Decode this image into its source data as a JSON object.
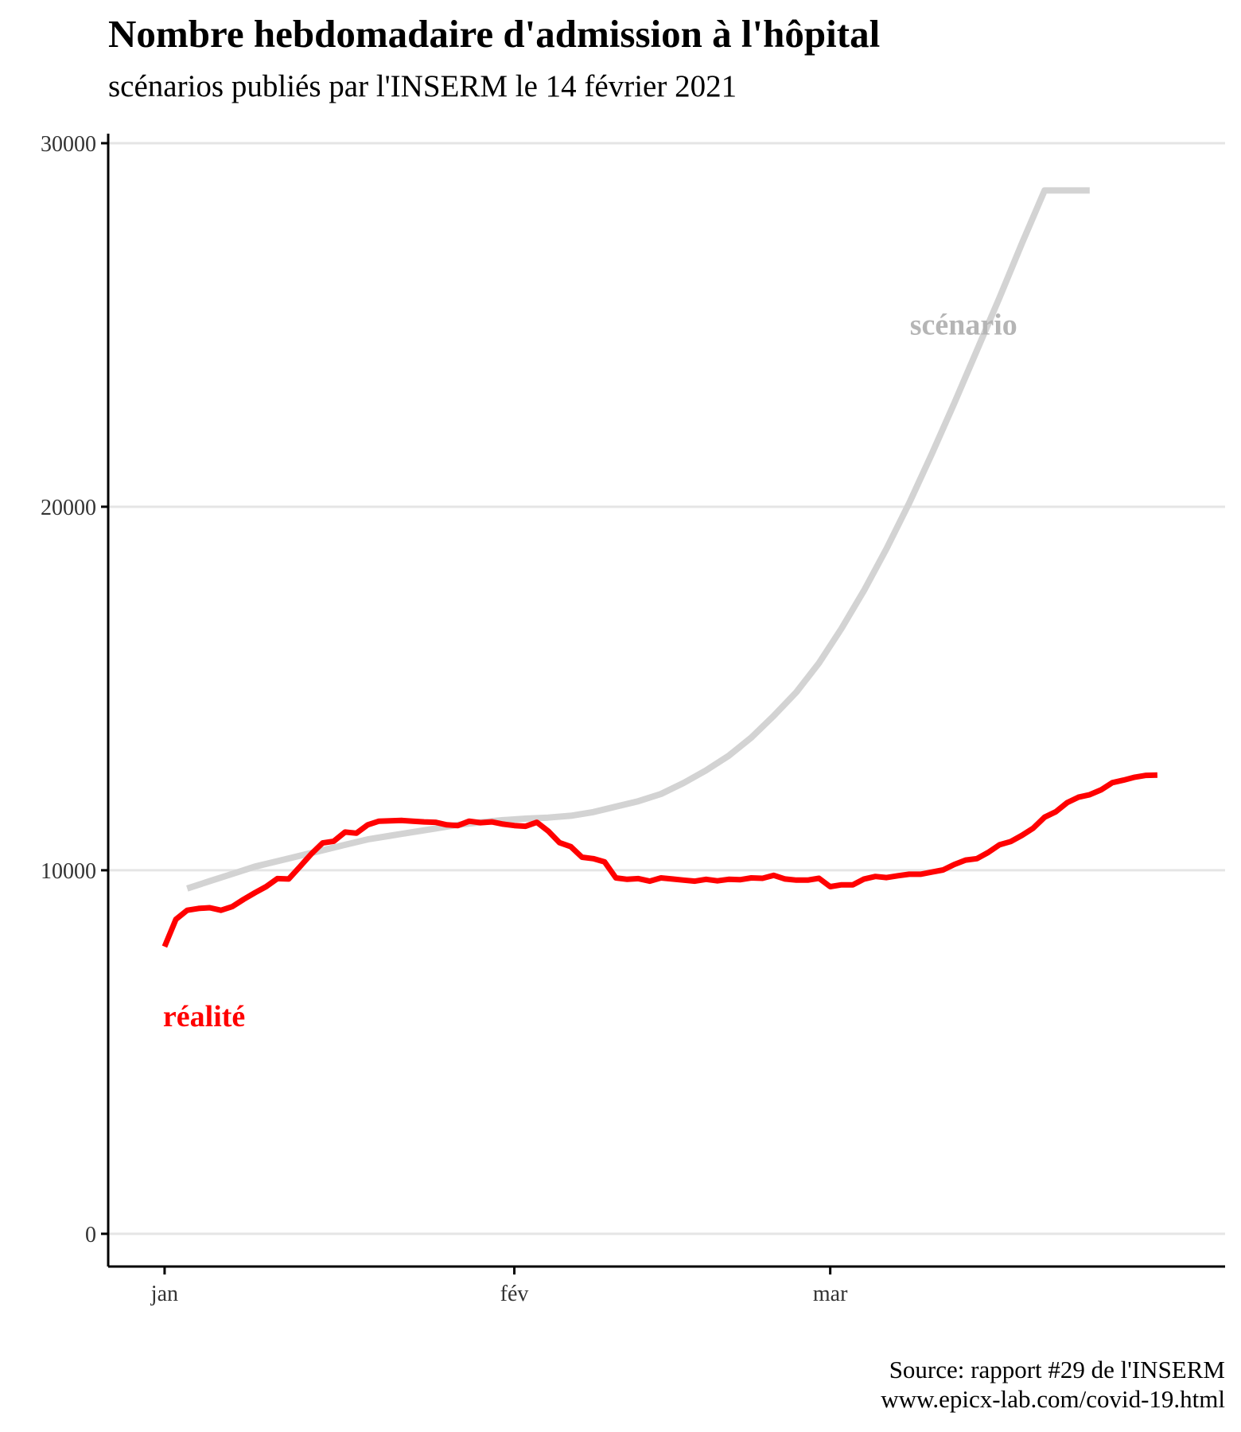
{
  "header": {
    "title": "Nombre hebdomadaire d'admission à l'hôpital",
    "subtitle": "scénarios publiés par l'INSERM le 14 février 2021"
  },
  "caption": {
    "line1": "Source: rapport #29 de l'INSERM",
    "line2": "www.epicx-lab.com/covid-19.html"
  },
  "chart_data": {
    "type": "line",
    "title": "Nombre hebdomadaire d'admission à l'hôpital",
    "subtitle": "scénarios publiés par l'INSERM le 14 février 2021",
    "xlabel": "",
    "ylabel": "",
    "x_axis": {
      "type": "date",
      "year": 2021,
      "ticks": [
        {
          "date": "2021-01-01",
          "label": "jan"
        },
        {
          "date": "2021-02-01",
          "label": "fév"
        },
        {
          "date": "2021-03-01",
          "label": "mar"
        }
      ],
      "range": [
        "2020-12-27",
        "2021-04-05"
      ]
    },
    "y_axis": {
      "ticks": [
        0,
        10000,
        20000,
        30000
      ],
      "ylim": [
        -900,
        30000
      ]
    },
    "grid": {
      "horizontal": true,
      "vertical": false
    },
    "legend": "none",
    "annotations": [
      {
        "text": "scénario",
        "series": "scenario"
      },
      {
        "text": "réalité",
        "series": "realite"
      }
    ],
    "series": [
      {
        "key": "scenario",
        "label": "scénario",
        "color": "#d3d3d3",
        "x": [
          "2021-01-03",
          "2021-01-05",
          "2021-01-07",
          "2021-01-09",
          "2021-01-11",
          "2021-01-13",
          "2021-01-15",
          "2021-01-17",
          "2021-01-19",
          "2021-01-21",
          "2021-01-23",
          "2021-01-25",
          "2021-01-27",
          "2021-01-29",
          "2021-01-31",
          "2021-02-02",
          "2021-02-04",
          "2021-02-06",
          "2021-02-08",
          "2021-02-10",
          "2021-02-12",
          "2021-02-14",
          "2021-02-16",
          "2021-02-18",
          "2021-02-20",
          "2021-02-22",
          "2021-02-24",
          "2021-02-26",
          "2021-02-28",
          "2021-03-02",
          "2021-03-04",
          "2021-03-06",
          "2021-03-08",
          "2021-03-10",
          "2021-03-12",
          "2021-03-14",
          "2021-03-16",
          "2021-03-18",
          "2021-03-20",
          "2021-03-22",
          "2021-03-24"
        ],
        "y": [
          9500,
          9700,
          9900,
          10100,
          10250,
          10400,
          10550,
          10700,
          10850,
          10950,
          11050,
          11150,
          11250,
          11320,
          11380,
          11420,
          11450,
          11500,
          11600,
          11750,
          11900,
          12100,
          12400,
          12750,
          13150,
          13650,
          14250,
          14900,
          15700,
          16650,
          17700,
          18850,
          20100,
          21450,
          22850,
          24300,
          25750,
          27250,
          28700,
          28700,
          28700
        ]
      },
      {
        "key": "realite",
        "label": "réalité",
        "color": "#ff0000",
        "x": [
          "2021-01-01",
          "2021-01-02",
          "2021-01-03",
          "2021-01-04",
          "2021-01-05",
          "2021-01-06",
          "2021-01-07",
          "2021-01-08",
          "2021-01-09",
          "2021-01-10",
          "2021-01-11",
          "2021-01-12",
          "2021-01-13",
          "2021-01-14",
          "2021-01-15",
          "2021-01-16",
          "2021-01-17",
          "2021-01-18",
          "2021-01-19",
          "2021-01-20",
          "2021-01-21",
          "2021-01-22",
          "2021-01-23",
          "2021-01-24",
          "2021-01-25",
          "2021-01-26",
          "2021-01-27",
          "2021-01-28",
          "2021-01-29",
          "2021-01-30",
          "2021-01-31",
          "2021-02-01",
          "2021-02-02",
          "2021-02-03",
          "2021-02-04",
          "2021-02-05",
          "2021-02-06",
          "2021-02-07",
          "2021-02-08",
          "2021-02-09",
          "2021-02-10",
          "2021-02-11",
          "2021-02-12",
          "2021-02-13",
          "2021-02-14",
          "2021-02-15",
          "2021-02-16",
          "2021-02-17",
          "2021-02-18",
          "2021-02-19",
          "2021-02-20",
          "2021-02-21",
          "2021-02-22",
          "2021-02-23",
          "2021-02-24",
          "2021-02-25",
          "2021-02-26",
          "2021-02-27",
          "2021-02-28",
          "2021-03-01",
          "2021-03-02",
          "2021-03-03",
          "2021-03-04",
          "2021-03-05",
          "2021-03-06",
          "2021-03-07",
          "2021-03-08",
          "2021-03-09",
          "2021-03-10",
          "2021-03-11",
          "2021-03-12",
          "2021-03-13",
          "2021-03-14",
          "2021-03-15",
          "2021-03-16",
          "2021-03-17",
          "2021-03-18",
          "2021-03-19",
          "2021-03-20",
          "2021-03-21",
          "2021-03-22",
          "2021-03-23",
          "2021-03-24",
          "2021-03-25",
          "2021-03-26",
          "2021-03-27",
          "2021-03-28",
          "2021-03-29",
          "2021-03-30"
        ],
        "y": [
          7900,
          8650,
          8900,
          8950,
          8970,
          8900,
          9000,
          9200,
          9380,
          9550,
          9770,
          9760,
          10100,
          10450,
          10750,
          10800,
          11050,
          11020,
          11250,
          11350,
          11360,
          11370,
          11350,
          11330,
          11320,
          11250,
          11230,
          11350,
          11310,
          11330,
          11270,
          11230,
          11210,
          11320,
          11080,
          10760,
          10650,
          10360,
          10320,
          10230,
          9790,
          9750,
          9770,
          9700,
          9790,
          9760,
          9730,
          9700,
          9750,
          9710,
          9750,
          9740,
          9790,
          9780,
          9860,
          9760,
          9730,
          9730,
          9780,
          9550,
          9600,
          9600,
          9760,
          9830,
          9800,
          9850,
          9890,
          9890,
          9950,
          10010,
          10160,
          10280,
          10320,
          10490,
          10700,
          10790,
          10960,
          11160,
          11460,
          11610,
          11860,
          12010,
          12080,
          12210,
          12410,
          12480,
          12560,
          12610,
          12620
        ]
      }
    ]
  }
}
